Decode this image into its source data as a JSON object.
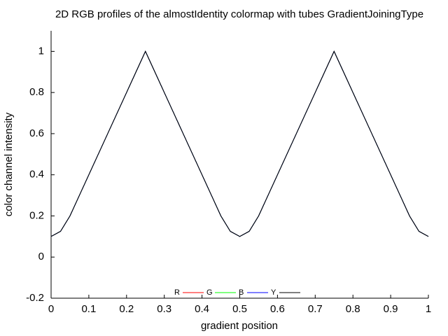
{
  "chart_data": {
    "type": "line",
    "title": "2D RGB profiles of the almostIdentity colormap with tubes GradientJoiningType",
    "x_label": "gradient position",
    "y_label": "color channel intensity",
    "x": [
      0,
      0.025,
      0.05,
      0.075,
      0.1,
      0.125,
      0.15,
      0.175,
      0.2,
      0.225,
      0.25,
      0.275,
      0.3,
      0.325,
      0.35,
      0.375,
      0.4,
      0.425,
      0.45,
      0.475,
      0.5,
      0.525,
      0.55,
      0.575,
      0.6,
      0.625,
      0.65,
      0.675,
      0.7,
      0.725,
      0.75,
      0.775,
      0.8,
      0.825,
      0.85,
      0.875,
      0.9,
      0.925,
      0.95,
      0.975,
      1
    ],
    "series": [
      {
        "name": "R",
        "color": "#ff0000",
        "values": [
          0.1,
          0.125,
          0.2,
          0.3,
          0.4,
          0.5,
          0.6,
          0.7,
          0.8,
          0.9,
          1,
          0.9,
          0.8,
          0.7,
          0.6,
          0.5,
          0.4,
          0.3,
          0.2,
          0.125,
          0.1,
          0.125,
          0.2,
          0.3,
          0.4,
          0.5,
          0.6,
          0.7,
          0.8,
          0.9,
          1,
          0.9,
          0.8,
          0.7,
          0.6,
          0.5,
          0.4,
          0.3,
          0.2,
          0.125,
          0.1
        ]
      },
      {
        "name": "G",
        "color": "#00ff00",
        "values": [
          0.1,
          0.125,
          0.2,
          0.3,
          0.4,
          0.5,
          0.6,
          0.7,
          0.8,
          0.9,
          1,
          0.9,
          0.8,
          0.7,
          0.6,
          0.5,
          0.4,
          0.3,
          0.2,
          0.125,
          0.1,
          0.125,
          0.2,
          0.3,
          0.4,
          0.5,
          0.6,
          0.7,
          0.8,
          0.9,
          1,
          0.9,
          0.8,
          0.7,
          0.6,
          0.5,
          0.4,
          0.3,
          0.2,
          0.125,
          0.1
        ]
      },
      {
        "name": "B",
        "color": "#0000ff",
        "values": [
          0.1,
          0.125,
          0.2,
          0.3,
          0.4,
          0.5,
          0.6,
          0.7,
          0.8,
          0.9,
          1,
          0.9,
          0.8,
          0.7,
          0.6,
          0.5,
          0.4,
          0.3,
          0.2,
          0.125,
          0.1,
          0.125,
          0.2,
          0.3,
          0.4,
          0.5,
          0.6,
          0.7,
          0.8,
          0.9,
          1,
          0.9,
          0.8,
          0.7,
          0.6,
          0.5,
          0.4,
          0.3,
          0.2,
          0.125,
          0.1
        ]
      },
      {
        "name": "Y",
        "color": "#000000",
        "values": [
          0.1,
          0.125,
          0.2,
          0.3,
          0.4,
          0.5,
          0.6,
          0.7,
          0.8,
          0.9,
          1,
          0.9,
          0.8,
          0.7,
          0.6,
          0.5,
          0.4,
          0.3,
          0.2,
          0.125,
          0.1,
          0.125,
          0.2,
          0.3,
          0.4,
          0.5,
          0.6,
          0.7,
          0.8,
          0.9,
          1,
          0.9,
          0.8,
          0.7,
          0.6,
          0.5,
          0.4,
          0.3,
          0.2,
          0.125,
          0.1
        ]
      }
    ],
    "xlim": [
      0,
      1
    ],
    "ylim": [
      -0.2,
      1.1
    ],
    "xticks": [
      0,
      0.1,
      0.2,
      0.3,
      0.4,
      0.5,
      0.6,
      0.7,
      0.8,
      0.9,
      1
    ],
    "yticks": [
      -0.2,
      0,
      0.2,
      0.4,
      0.6,
      0.8,
      1
    ],
    "grid": false,
    "legend": "bottom"
  }
}
